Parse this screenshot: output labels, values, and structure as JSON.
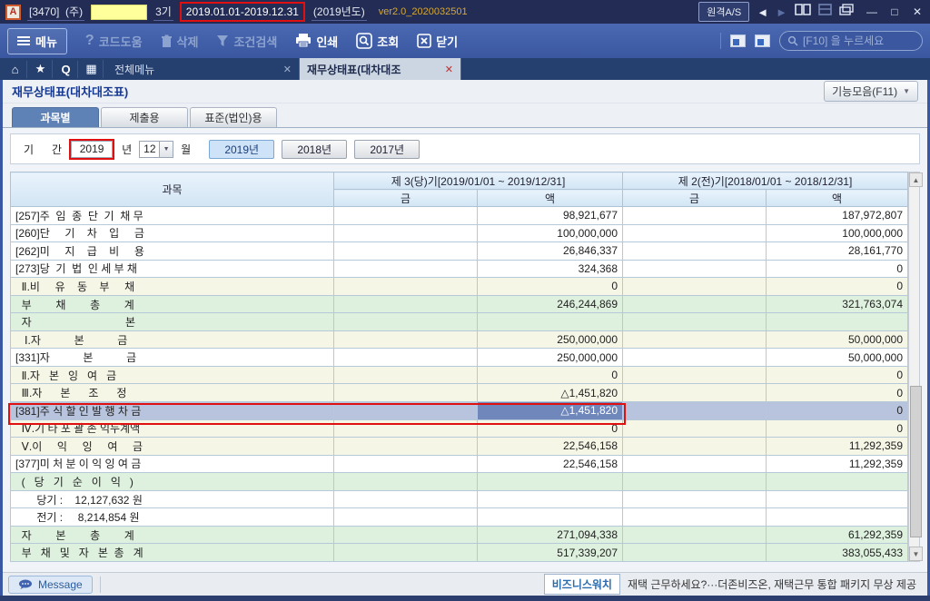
{
  "window": {
    "logo": "A",
    "company_code": "[3470]  (주)",
    "term": "3기",
    "date_range": "2019.01.01-2019.12.31",
    "year_label": "(2019년도)",
    "version": "ver2.0_2020032501",
    "remote_button": "원격A/S"
  },
  "icons": {
    "back": "◄",
    "forward": "►",
    "minimize": "—",
    "maximize": "□",
    "close": "✕",
    "home": "⌂",
    "star": "★",
    "quick": "Q",
    "calendar": "▦",
    "tab_close": "✕",
    "dropdown": "▼",
    "scroll_up": "▲",
    "scroll_down": "▼"
  },
  "toolbar": {
    "menu": "메뉴",
    "code_help": "코드도움",
    "delete": "삭제",
    "cond_search": "조건검색",
    "print": "인쇄",
    "inquiry": "조회",
    "close": "닫기",
    "search_placeholder": "[F10] 을 누르세요"
  },
  "tabs": {
    "tab1": "전체메뉴",
    "tab2": "재무상태표(대차대조"
  },
  "page": {
    "title": "재무상태표(대차대조표)",
    "function_menu": "기능모음(F11)"
  },
  "subtabs": {
    "t1": "과목별",
    "t2": "제출용",
    "t3": "표준(법인)용"
  },
  "period": {
    "label": "기      간",
    "year_value": "2019",
    "year_suffix": "년",
    "month_value": "12",
    "month_suffix": "월",
    "btn_2019": "2019년",
    "btn_2018": "2018년",
    "btn_2017": "2017년"
  },
  "table": {
    "col_account": "과목",
    "col_current": "제 3(당)기[2019/01/01 ~ 2019/12/31]",
    "col_previous": "제 2(전)기[2018/01/01 ~ 2018/12/31]",
    "col_geum": "금",
    "col_aek": "액",
    "rows": [
      {
        "label": "[257]주  임  종  단  기  채 무",
        "cur": "98,921,677",
        "prev": "187,972,807",
        "style": "plain"
      },
      {
        "label": "[260]단     기    차    입     금",
        "cur": "100,000,000",
        "prev": "100,000,000",
        "style": "plain"
      },
      {
        "label": "[262]미     지    급    비     용",
        "cur": "26,846,337",
        "prev": "28,161,770",
        "style": "plain"
      },
      {
        "label": "[273]당  기  법  인 세 부 채",
        "cur": "324,368",
        "prev": "0",
        "style": "plain"
      },
      {
        "label": "  Ⅱ.비     유    동    부     채",
        "cur": "0",
        "prev": "0",
        "style": "sub"
      },
      {
        "label": "  부        채        총        계",
        "cur": "246,244,869",
        "prev": "321,763,074",
        "style": "total"
      },
      {
        "label": "  자                               본",
        "cur": "",
        "prev": "",
        "style": "total"
      },
      {
        "label": "   Ⅰ.자           본           금",
        "cur": "250,000,000",
        "prev": "50,000,000",
        "style": "sub"
      },
      {
        "label": "[331]자           본           금",
        "cur": "250,000,000",
        "prev": "50,000,000",
        "style": "plain"
      },
      {
        "label": "  Ⅱ.자   본   잉   여   금",
        "cur": "0",
        "prev": "0",
        "style": "sub"
      },
      {
        "label": "  Ⅲ.자      본      조      정",
        "cur": "△1,451,820",
        "prev": "0",
        "style": "sub"
      },
      {
        "label": "[381]주 식 할 인 발 행 차 금",
        "cur": "△1,451,820",
        "prev": "0",
        "style": "selected"
      },
      {
        "label": "  Ⅳ.기 타 포 괄 손 익누계액",
        "cur": "0",
        "prev": "0",
        "style": "sub"
      },
      {
        "label": "  Ⅴ.이     익     잉     여     금",
        "cur": "22,546,158",
        "prev": "11,292,359",
        "style": "sub"
      },
      {
        "label": "[377]미 처 분 이 익 잉 여 금",
        "cur": "22,546,158",
        "prev": "11,292,359",
        "style": "plain"
      },
      {
        "label": "  (   당   기   순   이   익   )",
        "cur": "",
        "prev": "",
        "style": "total"
      },
      {
        "label": "       당기 :    12,127,632 원",
        "cur": "",
        "prev": "",
        "style": "note"
      },
      {
        "label": "       전기 :     8,214,854 원",
        "cur": "",
        "prev": "",
        "style": "note"
      },
      {
        "label": "  자        본        총        계",
        "cur": "271,094,338",
        "prev": "61,292,359",
        "style": "total"
      },
      {
        "label": "  부   채   및   자   본  총   계",
        "cur": "517,339,207",
        "prev": "383,055,433",
        "style": "total"
      }
    ]
  },
  "statusbar": {
    "message": "Message",
    "news_source": "비즈니스워치",
    "news_text": "재택 근무하세요?···더존비즈온, 재택근무 통합 패키지 무상 제공"
  }
}
